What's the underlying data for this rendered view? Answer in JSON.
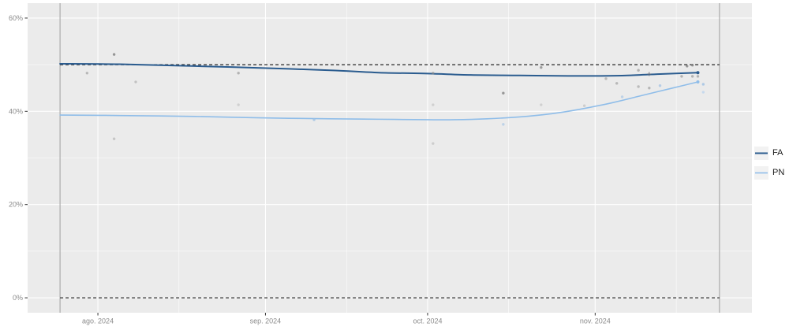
{
  "chart_data": {
    "type": "line",
    "title": "",
    "description": "Smoothed poll-trend chart with scatter of individual poll results",
    "x_axis": {
      "tick_labels": [
        "ago. 2024",
        "sep. 2024",
        "oct. 2024",
        "nov. 2024"
      ],
      "tick_dates": [
        "2024-08-01",
        "2024-09-01",
        "2024-10-01",
        "2024-11-01"
      ],
      "minor_dates": [
        "2024-08-16",
        "2024-09-16",
        "2024-10-16",
        "2024-11-16"
      ],
      "domain": [
        "2024-07-19",
        "2024-11-30"
      ]
    },
    "y_axis": {
      "tick_labels": [
        "0%",
        "20%",
        "40%",
        "60%"
      ],
      "ticks": [
        0,
        20,
        40,
        60
      ],
      "minor_ticks": [
        10,
        30,
        50
      ],
      "ylim": [
        -3.2,
        63.2
      ]
    },
    "reference_lines": {
      "horizontal_dashed_values": [
        50,
        0
      ],
      "horizontal_dashed_span": [
        "2024-07-25",
        "2024-11-24"
      ],
      "vertical_solid_dates": [
        "2024-07-25",
        "2024-11-24"
      ]
    },
    "legend_position": "right",
    "grid": true,
    "series": [
      {
        "name": "FA",
        "color": "#2b5c8f",
        "width": 2,
        "end_dot": true,
        "points": [
          {
            "date": "2024-07-25",
            "value": 50.2
          },
          {
            "date": "2024-08-05",
            "value": 50.1
          },
          {
            "date": "2024-08-19",
            "value": 49.7
          },
          {
            "date": "2024-08-31",
            "value": 49.3
          },
          {
            "date": "2024-09-13",
            "value": 48.8
          },
          {
            "date": "2024-09-22",
            "value": 48.3
          },
          {
            "date": "2024-10-01",
            "value": 48.1
          },
          {
            "date": "2024-10-09",
            "value": 47.8
          },
          {
            "date": "2024-10-18",
            "value": 47.7
          },
          {
            "date": "2024-10-27",
            "value": 47.6
          },
          {
            "date": "2024-11-02",
            "value": 47.6
          },
          {
            "date": "2024-11-07",
            "value": 47.7
          },
          {
            "date": "2024-11-13",
            "value": 48.0
          },
          {
            "date": "2024-11-20",
            "value": 48.3
          }
        ]
      },
      {
        "name": "PN",
        "color": "#8fbde9",
        "width": 1.6,
        "end_dot": true,
        "points": [
          {
            "date": "2024-07-25",
            "value": 39.2
          },
          {
            "date": "2024-08-05",
            "value": 39.1
          },
          {
            "date": "2024-08-19",
            "value": 38.9
          },
          {
            "date": "2024-08-31",
            "value": 38.6
          },
          {
            "date": "2024-09-13",
            "value": 38.4
          },
          {
            "date": "2024-09-22",
            "value": 38.3
          },
          {
            "date": "2024-10-01",
            "value": 38.2
          },
          {
            "date": "2024-10-06",
            "value": 38.2
          },
          {
            "date": "2024-10-12",
            "value": 38.4
          },
          {
            "date": "2024-10-18",
            "value": 38.8
          },
          {
            "date": "2024-10-24",
            "value": 39.5
          },
          {
            "date": "2024-10-29",
            "value": 40.4
          },
          {
            "date": "2024-11-04",
            "value": 41.8
          },
          {
            "date": "2024-11-10",
            "value": 43.5
          },
          {
            "date": "2024-11-15",
            "value": 44.9
          },
          {
            "date": "2024-11-20",
            "value": 46.3
          }
        ]
      }
    ],
    "scatter_points": [
      {
        "date": "2024-07-30",
        "value": 48.2,
        "color": "#8c8c8c",
        "opacity": 0.55
      },
      {
        "date": "2024-08-04",
        "value": 52.2,
        "color": "#7a7a7a",
        "opacity": 0.75
      },
      {
        "date": "2024-08-08",
        "value": 46.3,
        "color": "#9a9a9a",
        "opacity": 0.5
      },
      {
        "date": "2024-08-04",
        "value": 34.1,
        "color": "#9a9a9a",
        "opacity": 0.45
      },
      {
        "date": "2024-08-27",
        "value": 48.2,
        "color": "#8c8c8c",
        "opacity": 0.6
      },
      {
        "date": "2024-08-27",
        "value": 41.4,
        "color": "#a8a8a8",
        "opacity": 0.4
      },
      {
        "date": "2024-09-10",
        "value": 38.2,
        "color": "#9fc1e4",
        "opacity": 0.8
      },
      {
        "date": "2024-10-02",
        "value": 48.2,
        "color": "#8c8c8c",
        "opacity": 0.6
      },
      {
        "date": "2024-10-02",
        "value": 41.4,
        "color": "#a8a8a8",
        "opacity": 0.4
      },
      {
        "date": "2024-10-02",
        "value": 33.1,
        "color": "#a8a8a8",
        "opacity": 0.45
      },
      {
        "date": "2024-10-15",
        "value": 43.9,
        "color": "#7a7a7a",
        "opacity": 0.75
      },
      {
        "date": "2024-10-15",
        "value": 37.2,
        "color": "#9fc1e4",
        "opacity": 0.6
      },
      {
        "date": "2024-10-22",
        "value": 49.4,
        "color": "#7a7a7a",
        "opacity": 0.7
      },
      {
        "date": "2024-10-22",
        "value": 41.4,
        "color": "#a8a8a8",
        "opacity": 0.4
      },
      {
        "date": "2024-10-30",
        "value": 41.2,
        "color": "#a8a8a8",
        "opacity": 0.45
      },
      {
        "date": "2024-11-03",
        "value": 47.0,
        "color": "#8c8c8c",
        "opacity": 0.5
      },
      {
        "date": "2024-11-05",
        "value": 46.0,
        "color": "#8c8c8c",
        "opacity": 0.55
      },
      {
        "date": "2024-11-06",
        "value": 43.1,
        "color": "#9fc1e4",
        "opacity": 0.6
      },
      {
        "date": "2024-11-09",
        "value": 48.8,
        "color": "#8c8c8c",
        "opacity": 0.6
      },
      {
        "date": "2024-11-11",
        "value": 48.0,
        "color": "#5f6b7a",
        "opacity": 0.9,
        "marker": "plus"
      },
      {
        "date": "2024-11-09",
        "value": 45.3,
        "color": "#8c8c8c",
        "opacity": 0.5
      },
      {
        "date": "2024-11-11",
        "value": 45.0,
        "color": "#8c8c8c",
        "opacity": 0.55
      },
      {
        "date": "2024-11-13",
        "value": 45.5,
        "color": "#9fc1e4",
        "opacity": 0.7
      },
      {
        "date": "2024-11-18",
        "value": 49.7,
        "color": "#7a7a7a",
        "opacity": 0.75
      },
      {
        "date": "2024-11-19",
        "value": 49.9,
        "color": "#7a7a7a",
        "opacity": 0.75
      },
      {
        "date": "2024-11-17",
        "value": 47.5,
        "color": "#8c8c8c",
        "opacity": 0.6
      },
      {
        "date": "2024-11-19",
        "value": 47.5,
        "color": "#8c8c8c",
        "opacity": 0.6
      },
      {
        "date": "2024-11-20",
        "value": 47.5,
        "color": "#8c8c8c",
        "opacity": 0.6
      },
      {
        "date": "2024-11-21",
        "value": 45.8,
        "color": "#9fc1e4",
        "opacity": 0.8
      },
      {
        "date": "2024-11-21",
        "value": 44.1,
        "color": "#b6d2ee",
        "opacity": 0.7
      }
    ],
    "colors": {
      "panel_background": "#ebebeb",
      "grid_major": "#ffffff",
      "grid_minor": "#ffffff",
      "dashed_reference": "#262626",
      "vertical_reference": "#ababab",
      "axis_tick": "#333333",
      "axis_tick_label": "#8a8a8a",
      "legend_label": "#1a1a1a",
      "legend_key_background": "#f2f2f2"
    }
  }
}
